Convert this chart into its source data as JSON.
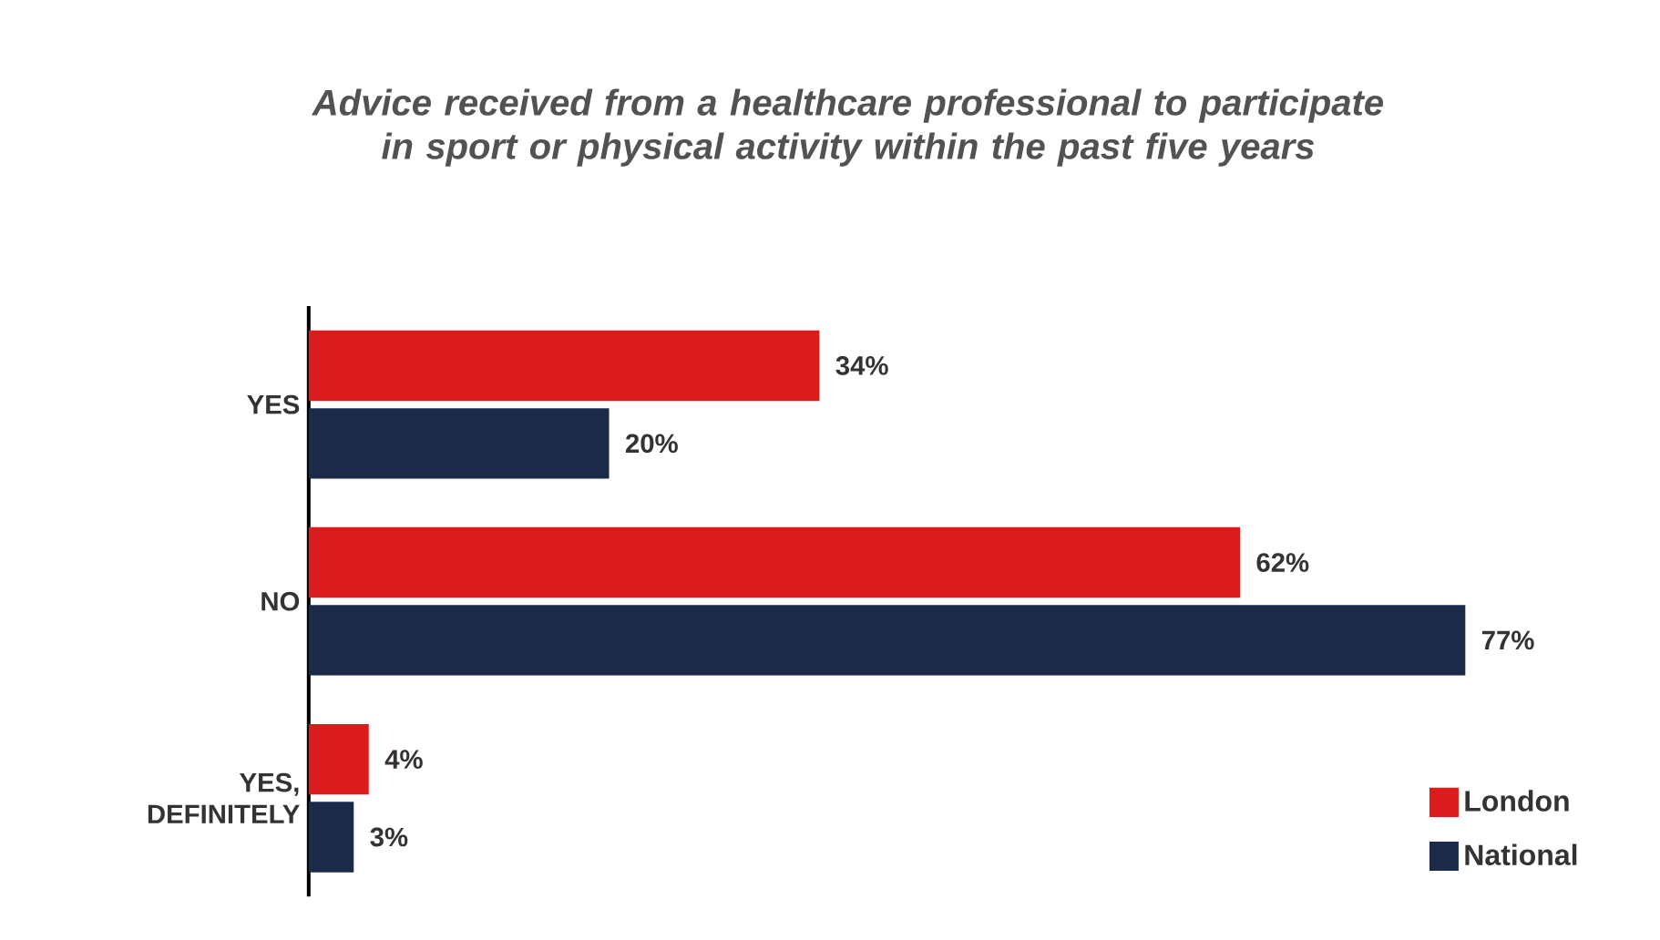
{
  "chart_data": {
    "type": "bar",
    "orientation": "horizontal",
    "title": "Advice received from a healthcare professional to participate in sport or physical activity within the past five years",
    "categories": [
      "YES",
      "NO",
      "YES, DEFINITELY"
    ],
    "series": [
      {
        "name": "London",
        "color": "#dc1c1c",
        "values": [
          34,
          62,
          4
        ],
        "value_labels": [
          "34%",
          "62%",
          "4%"
        ]
      },
      {
        "name": "National",
        "color": "#1c2a4a",
        "values": [
          20,
          77,
          3
        ],
        "value_labels": [
          "20%",
          "77%",
          "3%"
        ]
      }
    ],
    "legend": "bottom right"
  }
}
